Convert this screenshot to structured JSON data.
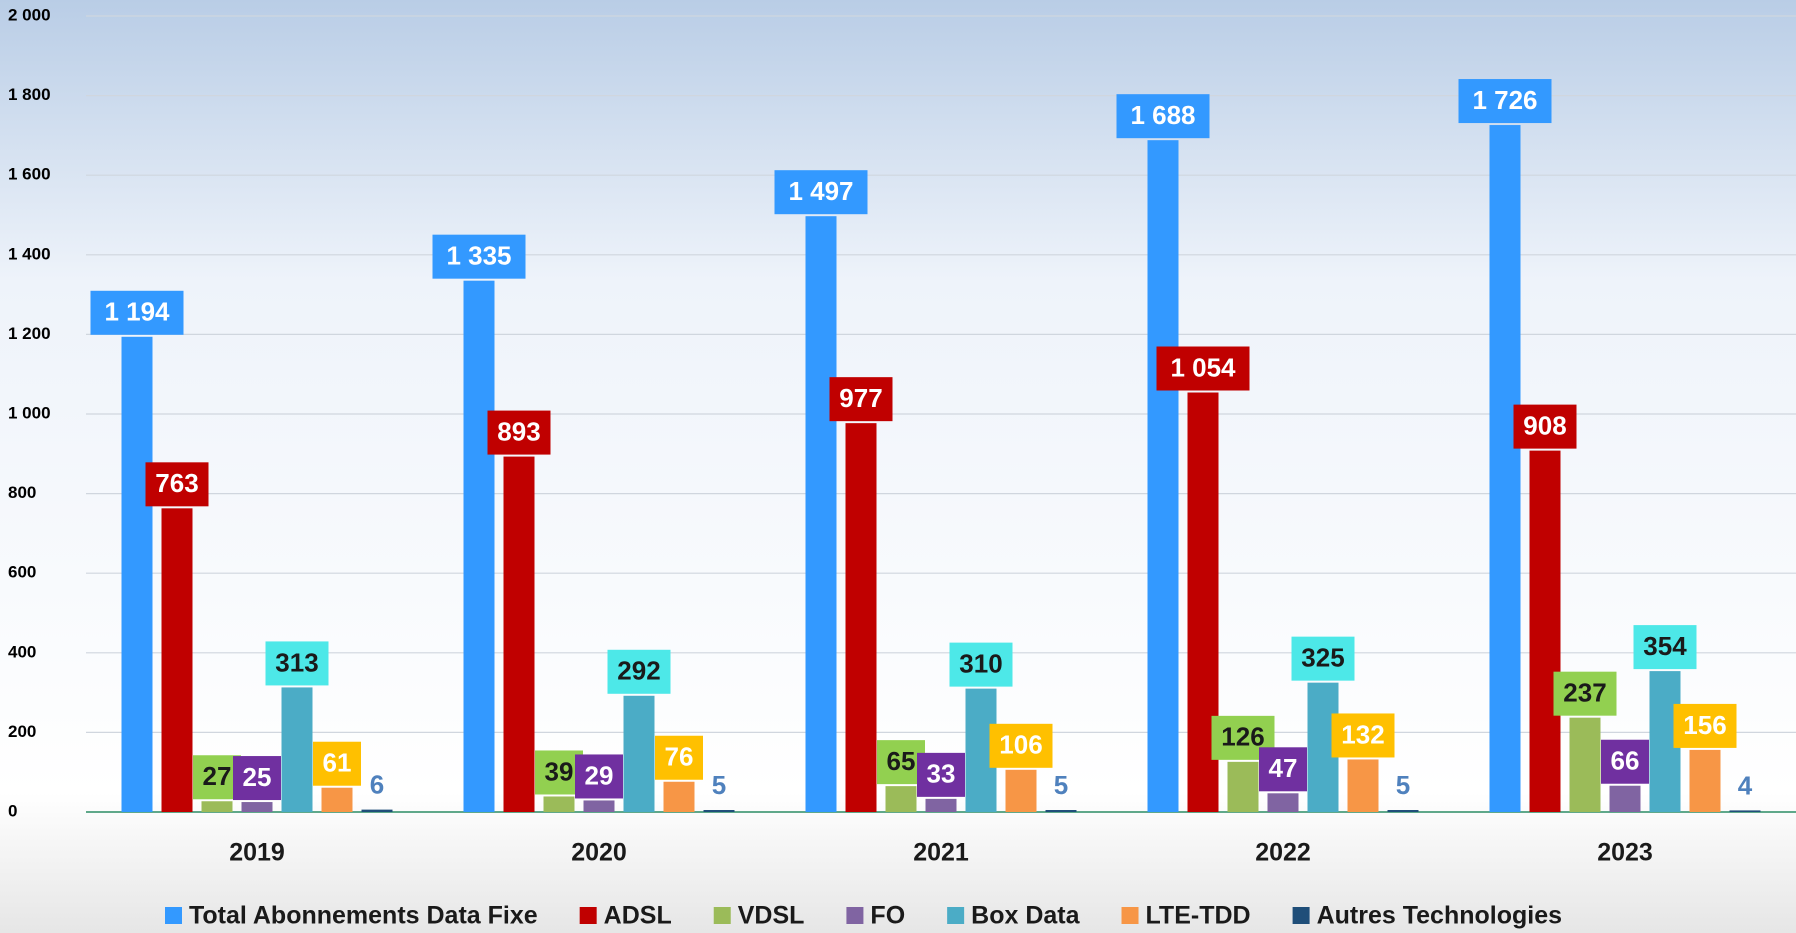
{
  "chart_data": {
    "type": "bar",
    "categories": [
      "2019",
      "2020",
      "2021",
      "2022",
      "2023"
    ],
    "ylim": [
      0,
      2000
    ],
    "yticks": [
      0,
      200,
      400,
      600,
      800,
      {
        "value": 1000,
        "label": "1 000"
      },
      {
        "value": 1200,
        "label": "1 200"
      },
      {
        "value": 1400,
        "label": "1 400"
      },
      {
        "value": 1600,
        "label": "1 600"
      },
      {
        "value": 1800,
        "label": "1 800"
      },
      {
        "value": 2000,
        "label": "2 000"
      }
    ],
    "grid": true,
    "legend": "bottom",
    "series": [
      {
        "name": "Total Abonnements Data Fixe",
        "color": "#3399ff",
        "label_background": "#3399ff",
        "label_color": "#ffffff",
        "values": [
          1194,
          1335,
          1497,
          1688,
          1726
        ],
        "value_labels": [
          "1 194",
          "1 335",
          "1 497",
          "1 688",
          "1 726"
        ]
      },
      {
        "name": "ADSL",
        "color": "#c00000",
        "label_background": "#c00000",
        "label_color": "#ffffff",
        "values": [
          763,
          893,
          977,
          1054,
          908
        ],
        "value_labels": [
          "763",
          "893",
          "977",
          "1 054",
          "908"
        ]
      },
      {
        "name": "VDSL",
        "color": "#9bbb59",
        "label_background": "#92d050",
        "label_color": "#1a1a1a",
        "values": [
          27,
          39,
          65,
          126,
          237
        ]
      },
      {
        "name": "FO",
        "color": "#8064a2",
        "label_background": "#7030a0",
        "label_color": "#ffffff",
        "values": [
          25,
          29,
          33,
          47,
          66
        ]
      },
      {
        "name": "Box Data",
        "color": "#4bacc6",
        "label_background": "#4de8e8",
        "label_color": "#1a1a1a",
        "values": [
          313,
          292,
          310,
          325,
          354
        ]
      },
      {
        "name": "LTE-TDD",
        "color": "#f79646",
        "label_background": "#ffc000",
        "label_color": "#ffffff",
        "values": [
          61,
          76,
          106,
          132,
          156
        ]
      },
      {
        "name": "Autres Technologies",
        "color": "#1f4e79",
        "label_color": "#4f81bd",
        "values": [
          6,
          5,
          5,
          5,
          4
        ]
      }
    ]
  }
}
